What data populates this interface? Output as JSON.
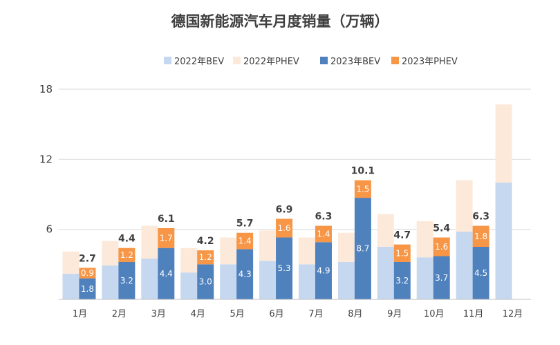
{
  "chart_data": {
    "type": "bar",
    "stacked": true,
    "title": "德国新能源汽车月度销量（万辆）",
    "categories": [
      "1月",
      "2月",
      "3月",
      "4月",
      "5月",
      "6月",
      "7月",
      "8月",
      "9月",
      "10月",
      "11月",
      "12月"
    ],
    "ylim": [
      0,
      18
    ],
    "yticks": [
      6,
      12,
      18
    ],
    "grid": true,
    "legend_position": "top",
    "groups": [
      {
        "name": "2022",
        "series": [
          {
            "name": "2022年BEV",
            "color": "#c5d8ef",
            "values": [
              2.2,
              2.9,
              3.5,
              2.3,
              3.0,
              3.3,
              3.0,
              3.2,
              4.5,
              3.6,
              5.8,
              10.0
            ]
          },
          {
            "name": "2022年PHEV",
            "color": "#fde9d9",
            "values": [
              1.9,
              2.1,
              2.8,
              2.1,
              2.3,
              2.6,
              2.3,
              2.5,
              2.8,
              3.1,
              4.4,
              6.7
            ]
          }
        ]
      },
      {
        "name": "2023",
        "series": [
          {
            "name": "2023年BEV",
            "color": "#4f81bd",
            "values": [
              1.8,
              3.2,
              4.4,
              3.0,
              4.3,
              5.3,
              4.9,
              8.7,
              3.2,
              3.7,
              4.5,
              null
            ]
          },
          {
            "name": "2023年PHEV",
            "color": "#f79646",
            "values": [
              0.9,
              1.2,
              1.7,
              1.2,
              1.4,
              1.6,
              1.4,
              1.5,
              1.5,
              1.6,
              1.8,
              null
            ]
          }
        ],
        "totals": [
          2.7,
          4.4,
          6.1,
          4.2,
          5.7,
          6.9,
          6.3,
          10.1,
          4.7,
          5.4,
          6.3,
          null
        ],
        "segment_labels": [
          [
            "1.8",
            "3.2",
            "4.4",
            "3.0",
            "4.3",
            "5.3",
            "4.9",
            "8.7",
            "3.2",
            "3.7",
            "4.5",
            null
          ],
          [
            "0.9",
            "1.2",
            "1.7",
            "1.2",
            "1.4",
            "1.6",
            "1.4",
            "1.5",
            "1.5",
            "1.6",
            "1.8",
            null
          ]
        ],
        "total_labels": [
          "2.7",
          "4.4",
          "6.1",
          "4.2",
          "5.7",
          "6.9",
          "6.3",
          "10.1",
          "4.7",
          "5.4",
          "6.3",
          null
        ]
      }
    ]
  }
}
